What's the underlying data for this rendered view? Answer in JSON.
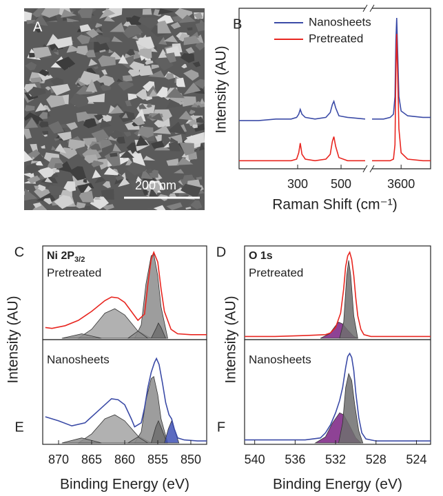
{
  "chart_data": [
    {
      "type": "image",
      "label": "A",
      "scale_bar": "200 nm"
    },
    {
      "type": "broken-line",
      "label": "B",
      "ylabel": "Intensity (AU)",
      "xlabel": "Raman Shift (cm⁻¹)",
      "xlim": [
        [
          30,
          611
        ],
        [
          3467,
          3735
        ]
      ],
      "xticks": [
        [
          300,
          500
        ],
        [
          3600
        ]
      ],
      "ylim": [
        0,
        100
      ],
      "legend": "upper left",
      "x": [
        [
          30,
          120,
          200,
          270,
          295,
          305,
          312,
          320,
          335,
          380,
          430,
          450,
          460,
          467,
          475,
          490,
          530,
          611
        ],
        [
          3467,
          3520,
          3550,
          3565,
          3572,
          3576,
          3580,
          3585,
          3590,
          3600,
          3630,
          3700,
          3735
        ]
      ],
      "series": [
        {
          "name": "Nanosheets",
          "color": "#3a4aa6",
          "values": [
            [
              30,
              30,
              31,
              31,
              32,
              34,
              37,
              34,
              32,
              31,
              32,
              35,
              40,
              42,
              38,
              33,
              32,
              31
            ],
            [
              31,
              31,
              32,
              34,
              45,
              80,
              94,
              70,
              45,
              36,
              33,
              32,
              32
            ]
          ]
        },
        {
          "name": "Pretreated",
          "color": "#e8251f",
          "values": [
            [
              5,
              5,
              5,
              5,
              6,
              10,
              16,
              9,
              6,
              5,
              6,
              9,
              17,
              20,
              14,
              7,
              5,
              5
            ],
            [
              5,
              5,
              5,
              6,
              15,
              60,
              84,
              55,
              25,
              10,
              6,
              5,
              5
            ]
          ]
        }
      ]
    },
    {
      "type": "xps",
      "label": "C",
      "title": "Ni 2P",
      "title_sub": "3/2",
      "ylabel": "Intensity (AU)",
      "xlim": [
        872.4,
        847.6
      ],
      "ylim": [
        0,
        100
      ],
      "series": [
        {
          "name": "Pretreated",
          "color": "#e8251f",
          "x": [
            872,
            871,
            869,
            867,
            865,
            863,
            862,
            861,
            860,
            859,
            858,
            857,
            856.5,
            856,
            855.6,
            855,
            854.5,
            854,
            853,
            852,
            850,
            847.6
          ],
          "values": [
            12,
            11,
            14,
            20,
            30,
            42,
            46,
            45,
            40,
            30,
            20,
            27,
            60,
            88,
            96,
            85,
            55,
            30,
            10,
            5,
            4,
            4
          ]
        }
      ],
      "components": [
        {
          "color": "#a3a3a3",
          "x": [
            867,
            865,
            863,
            861.5,
            860,
            858,
            856
          ],
          "values": [
            0,
            10,
            28,
            33,
            26,
            8,
            0
          ]
        },
        {
          "color": "#8c8c8c",
          "x": [
            858.5,
            857.5,
            856.8,
            856,
            855.6,
            855,
            854.5,
            853.5
          ],
          "values": [
            0,
            15,
            60,
            92,
            94,
            70,
            35,
            0
          ]
        },
        {
          "color": "#6e6e6e",
          "x": [
            856,
            855.2,
            854.9,
            854.5,
            853.8
          ],
          "values": [
            0,
            12,
            17,
            12,
            0
          ]
        },
        {
          "color": "#8c8c8c",
          "x": [
            869.5,
            866.5,
            863.5
          ],
          "values": [
            0,
            5,
            0
          ]
        },
        {
          "color": "#8c8c8c",
          "x": [
            859.5,
            858,
            856.5
          ],
          "values": [
            0,
            8,
            0
          ]
        }
      ]
    },
    {
      "type": "xps",
      "label": "E",
      "xlabel": "Binding Energy (eV)",
      "xlim": [
        872.4,
        847.6
      ],
      "xticks": [
        870,
        865,
        860,
        855,
        850
      ],
      "ylim": [
        0,
        100
      ],
      "series": [
        {
          "name": "Nanosheets",
          "color": "#3a4aa6",
          "x": [
            872,
            870,
            868,
            866,
            864,
            862,
            861,
            860,
            859,
            858.5,
            857.5,
            857,
            856.5,
            856,
            855.5,
            855.2,
            854.8,
            854.3,
            853.8,
            853.3,
            852.9,
            852.5,
            852,
            851,
            849,
            847.6
          ],
          "values": [
            26,
            22,
            17,
            20,
            32,
            44,
            43,
            38,
            24,
            16,
            20,
            35,
            55,
            70,
            80,
            84,
            78,
            60,
            40,
            28,
            24,
            14,
            5,
            3,
            2,
            2
          ]
        }
      ],
      "components": [
        {
          "color": "#a3a3a3",
          "x": [
            867,
            865,
            863,
            861.5,
            860,
            858,
            856
          ],
          "values": [
            0,
            9,
            24,
            28,
            22,
            7,
            0
          ]
        },
        {
          "color": "#8c8c8c",
          "x": [
            858.5,
            857.5,
            856.8,
            856,
            855.6,
            855,
            854.5,
            853.5
          ],
          "values": [
            0,
            11,
            42,
            64,
            66,
            48,
            24,
            0
          ]
        },
        {
          "color": "#6e6e6e",
          "x": [
            856,
            855.3,
            854.9,
            854.4,
            853.6
          ],
          "values": [
            0,
            16,
            22,
            14,
            0
          ]
        },
        {
          "color": "#3f51b5",
          "x": [
            854,
            853.4,
            852.9,
            852.4,
            851.8
          ],
          "values": [
            0,
            14,
            22,
            12,
            0
          ]
        },
        {
          "color": "#8c8c8c",
          "x": [
            869.5,
            866.5,
            863.5
          ],
          "values": [
            0,
            5,
            0
          ]
        },
        {
          "color": "#8c8c8c",
          "x": [
            859.5,
            858,
            856.5
          ],
          "values": [
            0,
            6,
            0
          ]
        }
      ]
    },
    {
      "type": "xps",
      "label": "D",
      "title": "O 1s",
      "ylabel": "Intensity (AU)",
      "xlim": [
        541,
        522.6
      ],
      "ylim": [
        0,
        100
      ],
      "series": [
        {
          "name": "Pretreated",
          "color": "#e8251f",
          "x": [
            541,
            538,
            535,
            533,
            532.5,
            532,
            531.5,
            531.2,
            531,
            530.8,
            530.6,
            530.4,
            530.2,
            530,
            529.8,
            529.5,
            529.2,
            528.5,
            526,
            522.6
          ],
          "values": [
            2,
            2,
            3,
            4,
            6,
            12,
            28,
            55,
            80,
            92,
            96,
            88,
            70,
            45,
            25,
            10,
            4,
            2,
            2,
            2
          ]
        }
      ],
      "components": [
        {
          "color": "#7a2182",
          "x": [
            533.5,
            532.6,
            532,
            531.7,
            531.3,
            530.8,
            530.2,
            529.8
          ],
          "values": [
            0,
            5,
            14,
            18,
            16,
            9,
            2,
            0
          ]
        },
        {
          "color": "#6e6e6e",
          "x": [
            531.6,
            531.2,
            530.9,
            530.7,
            530.5,
            530.2,
            529.8
          ],
          "values": [
            0,
            18,
            70,
            87,
            70,
            25,
            0
          ]
        }
      ]
    },
    {
      "type": "xps",
      "label": "F",
      "xlabel": "Binding Energy (eV)",
      "xlim": [
        541,
        522.6
      ],
      "xticks": [
        540,
        536,
        532,
        528,
        524
      ],
      "ylim": [
        0,
        100
      ],
      "series": [
        {
          "name": "Nanosheets",
          "color": "#3a4aa6",
          "x": [
            541,
            538,
            535,
            533.5,
            533,
            532.5,
            532,
            531.6,
            531.3,
            531,
            530.8,
            530.6,
            530.4,
            530.2,
            530,
            529.7,
            529.4,
            529,
            528,
            526,
            522.6
          ],
          "values": [
            3,
            3,
            3,
            5,
            10,
            18,
            30,
            42,
            55,
            75,
            86,
            89,
            85,
            72,
            50,
            25,
            10,
            4,
            2,
            2,
            2
          ]
        }
      ],
      "components": [
        {
          "color": "#7a2182",
          "x": [
            534,
            533,
            532.3,
            531.6,
            531.2,
            530.6,
            530,
            529.5
          ],
          "values": [
            0,
            6,
            20,
            30,
            28,
            17,
            5,
            0
          ]
        },
        {
          "color": "#6e6e6e",
          "x": [
            531.7,
            531.3,
            531,
            530.7,
            530.4,
            530.1,
            529.7,
            529.3
          ],
          "values": [
            0,
            20,
            55,
            69,
            62,
            38,
            12,
            0
          ]
        }
      ]
    }
  ]
}
